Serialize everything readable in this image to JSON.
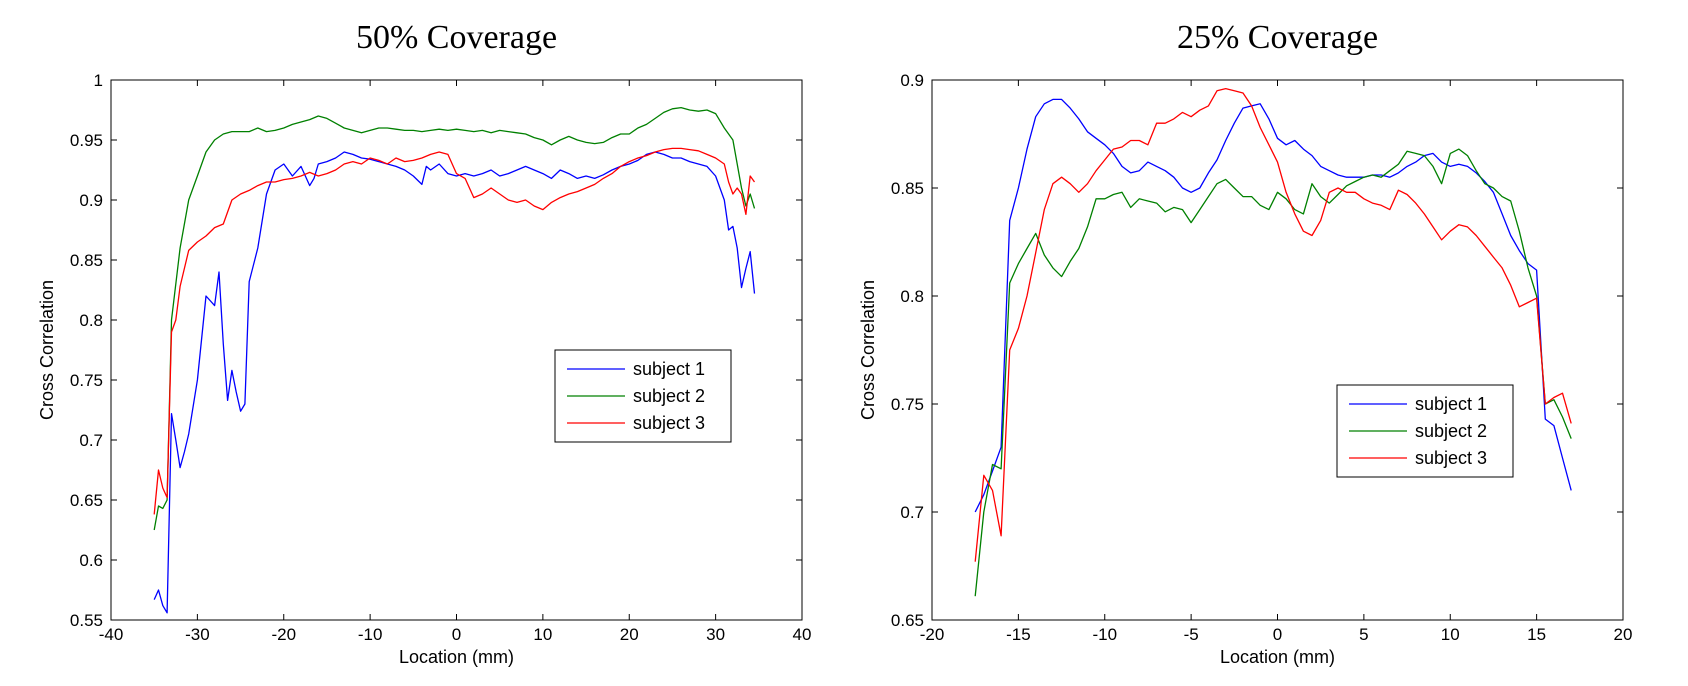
{
  "chart_data": [
    {
      "type": "line",
      "title": "50% Coverage",
      "xlabel": "Location (mm)",
      "ylabel": "Cross Correlation",
      "xlim": [
        -40,
        40
      ],
      "ylim": [
        0.55,
        1.0
      ],
      "xticks": [
        -40,
        -30,
        -20,
        -10,
        0,
        10,
        20,
        30,
        40
      ],
      "yticks": [
        0.55,
        0.6,
        0.65,
        0.7,
        0.75,
        0.8,
        0.85,
        0.9,
        0.95,
        1.0
      ],
      "xtick_labels": [
        "-40",
        "-30",
        "-20",
        "-10",
        "0",
        "10",
        "20",
        "30",
        "40"
      ],
      "ytick_labels": [
        "0.55",
        "0.6",
        "0.65",
        "0.7",
        "0.75",
        "0.8",
        "0.85",
        "0.9",
        "0.95",
        "1"
      ],
      "grid": false,
      "legend": "center-right",
      "series": [
        {
          "name": "subject 1",
          "color": "#0000ff",
          "x": [
            -35,
            -34.5,
            -34,
            -33.5,
            -33,
            -32.5,
            -32,
            -31.5,
            -31,
            -30,
            -29,
            -28,
            -27.5,
            -27,
            -26.5,
            -26,
            -25.5,
            -25,
            -24.5,
            -24,
            -23,
            -22,
            -21,
            -20,
            -19,
            -18,
            -17,
            -16.5,
            -16,
            -15,
            -14,
            -13,
            -12,
            -11,
            -10,
            -9,
            -8,
            -7,
            -6,
            -5,
            -4,
            -3.5,
            -3,
            -2,
            -1,
            0,
            1,
            2,
            3,
            4,
            5,
            6,
            7,
            8,
            9,
            10,
            11,
            12,
            13,
            14,
            15,
            16,
            17,
            18,
            19,
            20,
            21,
            22,
            23,
            24,
            25,
            26,
            27,
            28,
            29,
            30,
            31,
            31.5,
            32,
            32.5,
            33,
            33.5,
            34,
            34.5
          ],
          "values": [
            0.567,
            0.575,
            0.562,
            0.556,
            0.722,
            0.7,
            0.677,
            0.69,
            0.705,
            0.75,
            0.82,
            0.812,
            0.84,
            0.78,
            0.733,
            0.758,
            0.74,
            0.724,
            0.73,
            0.832,
            0.86,
            0.905,
            0.925,
            0.93,
            0.92,
            0.928,
            0.912,
            0.918,
            0.93,
            0.932,
            0.935,
            0.94,
            0.938,
            0.935,
            0.934,
            0.932,
            0.93,
            0.928,
            0.925,
            0.92,
            0.913,
            0.928,
            0.925,
            0.93,
            0.922,
            0.92,
            0.922,
            0.92,
            0.922,
            0.925,
            0.92,
            0.922,
            0.925,
            0.928,
            0.925,
            0.922,
            0.918,
            0.925,
            0.922,
            0.918,
            0.92,
            0.918,
            0.921,
            0.925,
            0.928,
            0.93,
            0.933,
            0.938,
            0.94,
            0.938,
            0.935,
            0.935,
            0.932,
            0.93,
            0.928,
            0.92,
            0.9,
            0.875,
            0.878,
            0.86,
            0.827,
            0.843,
            0.857,
            0.822
          ]
        },
        {
          "name": "subject 2",
          "color": "#008000",
          "x": [
            -35,
            -34.5,
            -34,
            -33.5,
            -33,
            -32,
            -31,
            -30,
            -29,
            -28,
            -27,
            -26,
            -25,
            -24,
            -23,
            -22,
            -21,
            -20,
            -19,
            -18,
            -17,
            -16,
            -15,
            -14,
            -13,
            -12,
            -11,
            -10,
            -9,
            -8,
            -7,
            -6,
            -5,
            -4,
            -3,
            -2,
            -1,
            0,
            1,
            2,
            3,
            4,
            5,
            6,
            7,
            8,
            9,
            10,
            11,
            12,
            13,
            14,
            15,
            16,
            17,
            18,
            19,
            20,
            21,
            22,
            23,
            24,
            25,
            26,
            27,
            28,
            29,
            30,
            31,
            32,
            32.5,
            33,
            33.5,
            34,
            34.5
          ],
          "values": [
            0.625,
            0.645,
            0.643,
            0.65,
            0.8,
            0.86,
            0.9,
            0.92,
            0.94,
            0.95,
            0.955,
            0.957,
            0.957,
            0.957,
            0.96,
            0.957,
            0.958,
            0.96,
            0.963,
            0.965,
            0.967,
            0.97,
            0.968,
            0.964,
            0.96,
            0.958,
            0.956,
            0.958,
            0.96,
            0.96,
            0.959,
            0.958,
            0.958,
            0.957,
            0.958,
            0.959,
            0.958,
            0.959,
            0.958,
            0.957,
            0.958,
            0.956,
            0.958,
            0.957,
            0.956,
            0.955,
            0.952,
            0.95,
            0.946,
            0.95,
            0.953,
            0.95,
            0.948,
            0.947,
            0.948,
            0.952,
            0.955,
            0.955,
            0.96,
            0.963,
            0.968,
            0.973,
            0.976,
            0.977,
            0.975,
            0.974,
            0.975,
            0.972,
            0.96,
            0.95,
            0.93,
            0.91,
            0.895,
            0.905,
            0.893
          ]
        },
        {
          "name": "subject 3",
          "color": "#ff0000",
          "x": [
            -35,
            -34.5,
            -34,
            -33.5,
            -33,
            -32.5,
            -32,
            -31,
            -30,
            -29,
            -28,
            -27,
            -26,
            -25,
            -24,
            -23,
            -22,
            -21,
            -20,
            -19,
            -18,
            -17,
            -16,
            -15,
            -14,
            -13,
            -12,
            -11,
            -10,
            -9,
            -8,
            -7,
            -6,
            -5,
            -4,
            -3,
            -2,
            -1,
            0,
            1,
            2,
            3,
            4,
            5,
            6,
            7,
            8,
            9,
            10,
            11,
            12,
            13,
            14,
            15,
            16,
            17,
            18,
            19,
            20,
            21,
            22,
            23,
            24,
            25,
            26,
            27,
            28,
            29,
            30,
            31,
            31.5,
            32,
            32.5,
            33,
            33.5,
            34,
            34.5
          ],
          "values": [
            0.638,
            0.675,
            0.66,
            0.652,
            0.79,
            0.8,
            0.828,
            0.858,
            0.865,
            0.87,
            0.877,
            0.88,
            0.9,
            0.905,
            0.908,
            0.912,
            0.915,
            0.915,
            0.917,
            0.918,
            0.92,
            0.923,
            0.92,
            0.922,
            0.925,
            0.93,
            0.932,
            0.93,
            0.935,
            0.933,
            0.93,
            0.935,
            0.932,
            0.933,
            0.935,
            0.938,
            0.94,
            0.938,
            0.922,
            0.918,
            0.902,
            0.905,
            0.91,
            0.905,
            0.9,
            0.898,
            0.9,
            0.895,
            0.892,
            0.898,
            0.902,
            0.905,
            0.907,
            0.91,
            0.913,
            0.918,
            0.922,
            0.928,
            0.932,
            0.935,
            0.937,
            0.94,
            0.942,
            0.943,
            0.943,
            0.942,
            0.941,
            0.938,
            0.935,
            0.93,
            0.915,
            0.905,
            0.91,
            0.905,
            0.888,
            0.92,
            0.915
          ]
        }
      ]
    },
    {
      "type": "line",
      "title": "25% Coverage",
      "xlabel": "Location (mm)",
      "ylabel": "Cross Correlation",
      "xlim": [
        -20,
        20
      ],
      "ylim": [
        0.65,
        0.9
      ],
      "xticks": [
        -20,
        -15,
        -10,
        -5,
        0,
        5,
        10,
        15,
        20
      ],
      "yticks": [
        0.65,
        0.7,
        0.75,
        0.8,
        0.85,
        0.9
      ],
      "xtick_labels": [
        "-20",
        "-15",
        "-10",
        "-5",
        "0",
        "5",
        "10",
        "15",
        "20"
      ],
      "ytick_labels": [
        "0.65",
        "0.7",
        "0.75",
        "0.8",
        "0.85",
        "0.9"
      ],
      "grid": false,
      "legend": "bottom-right",
      "series": [
        {
          "name": "subject 1",
          "color": "#0000ff",
          "x": [
            -17.5,
            -17,
            -16.5,
            -16,
            -15.5,
            -15,
            -14.5,
            -14,
            -13.5,
            -13,
            -12.5,
            -12,
            -11.5,
            -11,
            -10.5,
            -10,
            -9.5,
            -9,
            -8.5,
            -8,
            -7.5,
            -7,
            -6.5,
            -6,
            -5.5,
            -5,
            -4.5,
            -4,
            -3.5,
            -3,
            -2.5,
            -2,
            -1.5,
            -1,
            -0.5,
            0,
            0.5,
            1,
            1.5,
            2,
            2.5,
            3,
            3.5,
            4,
            4.5,
            5,
            5.5,
            6,
            6.5,
            7,
            7.5,
            8,
            8.5,
            9,
            9.5,
            10,
            10.5,
            11,
            11.5,
            12,
            12.5,
            13,
            13.5,
            14,
            14.5,
            15,
            15.5,
            16,
            16.5,
            17
          ],
          "values": [
            0.7,
            0.708,
            0.719,
            0.73,
            0.835,
            0.85,
            0.868,
            0.883,
            0.889,
            0.891,
            0.891,
            0.887,
            0.882,
            0.876,
            0.873,
            0.87,
            0.866,
            0.86,
            0.857,
            0.858,
            0.862,
            0.86,
            0.858,
            0.855,
            0.85,
            0.848,
            0.85,
            0.857,
            0.863,
            0.872,
            0.88,
            0.887,
            0.888,
            0.889,
            0.882,
            0.873,
            0.87,
            0.872,
            0.868,
            0.865,
            0.86,
            0.858,
            0.856,
            0.855,
            0.855,
            0.855,
            0.856,
            0.856,
            0.855,
            0.857,
            0.86,
            0.862,
            0.865,
            0.866,
            0.862,
            0.86,
            0.861,
            0.86,
            0.857,
            0.853,
            0.848,
            0.838,
            0.828,
            0.821,
            0.815,
            0.812,
            0.743,
            0.74,
            0.725,
            0.71
          ]
        },
        {
          "name": "subject 2",
          "color": "#008000",
          "x": [
            -17.5,
            -17,
            -16.5,
            -16,
            -15.5,
            -15,
            -14.5,
            -14,
            -13.5,
            -13,
            -12.5,
            -12,
            -11.5,
            -11,
            -10.5,
            -10,
            -9.5,
            -9,
            -8.5,
            -8,
            -7.5,
            -7,
            -6.5,
            -6,
            -5.5,
            -5,
            -4.5,
            -4,
            -3.5,
            -3,
            -2.5,
            -2,
            -1.5,
            -1,
            -0.5,
            0,
            0.5,
            1,
            1.5,
            2,
            2.5,
            3,
            3.5,
            4,
            4.5,
            5,
            5.5,
            6,
            6.5,
            7,
            7.5,
            8,
            8.5,
            9,
            9.5,
            10,
            10.5,
            11,
            11.5,
            12,
            12.5,
            13,
            13.5,
            14,
            14.5,
            15,
            15.5,
            16,
            16.5,
            17
          ],
          "values": [
            0.661,
            0.7,
            0.722,
            0.72,
            0.806,
            0.815,
            0.822,
            0.829,
            0.819,
            0.813,
            0.809,
            0.816,
            0.822,
            0.832,
            0.845,
            0.845,
            0.847,
            0.848,
            0.841,
            0.845,
            0.844,
            0.843,
            0.839,
            0.841,
            0.84,
            0.834,
            0.84,
            0.846,
            0.852,
            0.854,
            0.85,
            0.846,
            0.846,
            0.842,
            0.84,
            0.848,
            0.845,
            0.84,
            0.838,
            0.852,
            0.846,
            0.843,
            0.847,
            0.851,
            0.853,
            0.855,
            0.856,
            0.855,
            0.858,
            0.861,
            0.867,
            0.866,
            0.865,
            0.86,
            0.852,
            0.866,
            0.868,
            0.865,
            0.858,
            0.852,
            0.85,
            0.846,
            0.844,
            0.83,
            0.813,
            0.8,
            0.75,
            0.752,
            0.744,
            0.734
          ]
        },
        {
          "name": "subject 3",
          "color": "#ff0000",
          "x": [
            -17.5,
            -17,
            -16.5,
            -16,
            -15.5,
            -15,
            -14.5,
            -14,
            -13.5,
            -13,
            -12.5,
            -12,
            -11.5,
            -11,
            -10.5,
            -10,
            -9.5,
            -9,
            -8.5,
            -8,
            -7.5,
            -7,
            -6.5,
            -6,
            -5.5,
            -5,
            -4.5,
            -4,
            -3.5,
            -3,
            -2.5,
            -2,
            -1.5,
            -1,
            -0.5,
            0,
            0.5,
            1,
            1.5,
            2,
            2.5,
            3,
            3.5,
            4,
            4.5,
            5,
            5.5,
            6,
            6.5,
            7,
            7.5,
            8,
            8.5,
            9,
            9.5,
            10,
            10.5,
            11,
            11.5,
            12,
            12.5,
            13,
            13.5,
            14,
            14.5,
            15,
            15.5,
            16,
            16.5,
            17
          ],
          "values": [
            0.677,
            0.717,
            0.71,
            0.689,
            0.775,
            0.785,
            0.8,
            0.82,
            0.84,
            0.852,
            0.855,
            0.852,
            0.848,
            0.852,
            0.858,
            0.863,
            0.868,
            0.869,
            0.872,
            0.872,
            0.87,
            0.88,
            0.88,
            0.882,
            0.885,
            0.883,
            0.886,
            0.888,
            0.895,
            0.896,
            0.895,
            0.894,
            0.888,
            0.878,
            0.87,
            0.862,
            0.848,
            0.838,
            0.83,
            0.828,
            0.835,
            0.848,
            0.85,
            0.848,
            0.848,
            0.845,
            0.843,
            0.842,
            0.84,
            0.849,
            0.847,
            0.843,
            0.838,
            0.832,
            0.826,
            0.83,
            0.833,
            0.832,
            0.828,
            0.823,
            0.818,
            0.813,
            0.805,
            0.795,
            0.797,
            0.799,
            0.75,
            0.753,
            0.755,
            0.741
          ]
        }
      ]
    }
  ]
}
